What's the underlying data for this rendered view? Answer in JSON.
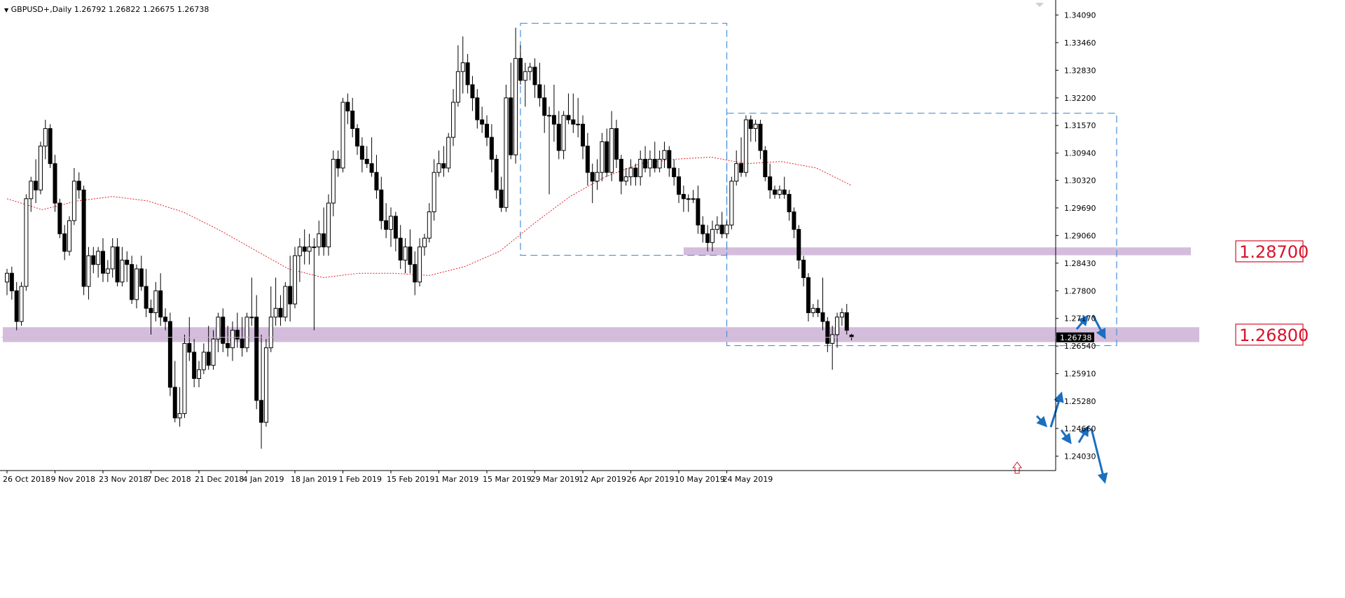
{
  "header": {
    "symbol": "GBPUSD+,Daily",
    "ohlc": "1.26792 1.26822 1.26675 1.26738"
  },
  "colors": {
    "zone": "#cdb2d6",
    "ma": "#e0202a",
    "box": "#4a90d9",
    "arrow": "#1a6fc0",
    "label_red": "#d8122a",
    "axis": "#000000"
  },
  "chart_data": {
    "type": "candlestick",
    "symbol": "GBPUSD+",
    "timeframe": "Daily",
    "ylim": [
      1.237,
      1.344
    ],
    "price_ticks": [
      "1.34090",
      "1.33460",
      "1.32830",
      "1.32200",
      "1.31570",
      "1.30940",
      "1.30320",
      "1.29690",
      "1.29060",
      "1.28430",
      "1.27800",
      "1.27170",
      "1.26540",
      "1.25910",
      "1.25280",
      "1.24660",
      "1.24030"
    ],
    "date_ticks": [
      "26 Oct 2018",
      "9 Nov 2018",
      "23 Nov 2018",
      "7 Dec 2018",
      "21 Dec 2018",
      "4 Jan 2019",
      "18 Jan 2019",
      "1 Feb 2019",
      "15 Feb 2019",
      "1 Mar 2019",
      "15 Mar 2019",
      "29 Mar 2019",
      "12 Apr 2019",
      "26 Apr 2019",
      "10 May 2019",
      "24 May 2019"
    ],
    "current_price": "1.26738",
    "levels": [
      {
        "label": "1.28700",
        "value": 1.287
      },
      {
        "label": "1.26800",
        "value": 1.268
      }
    ],
    "moving_average": [
      [
        0,
        1.299
      ],
      [
        10,
        1.2965
      ],
      [
        20,
        1.2985
      ],
      [
        30,
        1.2995
      ],
      [
        40,
        1.2985
      ],
      [
        50,
        1.296
      ],
      [
        60,
        1.292
      ],
      [
        70,
        1.2875
      ],
      [
        80,
        1.283
      ],
      [
        90,
        1.281
      ],
      [
        100,
        1.282
      ],
      [
        110,
        1.282
      ],
      [
        120,
        1.2815
      ],
      [
        130,
        1.2835
      ],
      [
        140,
        1.287
      ],
      [
        150,
        1.2935
      ],
      [
        160,
        1.2995
      ],
      [
        170,
        1.304
      ],
      [
        180,
        1.307
      ],
      [
        190,
        1.308
      ],
      [
        200,
        1.3085
      ],
      [
        210,
        1.307
      ],
      [
        220,
        1.3075
      ],
      [
        230,
        1.306
      ],
      [
        240,
        1.302
      ]
    ],
    "candles": [
      [
        1.28,
        1.283,
        1.277,
        1.282
      ],
      [
        1.282,
        1.2835,
        1.276,
        1.278
      ],
      [
        1.278,
        1.28,
        1.269,
        1.271
      ],
      [
        1.271,
        1.28,
        1.27,
        1.279
      ],
      [
        1.279,
        1.3,
        1.278,
        1.299
      ],
      [
        1.299,
        1.304,
        1.296,
        1.303
      ],
      [
        1.303,
        1.308,
        1.298,
        1.301
      ],
      [
        1.301,
        1.312,
        1.3,
        1.311
      ],
      [
        1.311,
        1.317,
        1.308,
        1.315
      ],
      [
        1.315,
        1.316,
        1.306,
        1.307
      ],
      [
        1.307,
        1.309,
        1.296,
        1.298
      ],
      [
        1.298,
        1.299,
        1.29,
        1.291
      ],
      [
        1.291,
        1.293,
        1.285,
        1.287
      ],
      [
        1.287,
        1.295,
        1.286,
        1.294
      ],
      [
        1.294,
        1.306,
        1.293,
        1.303
      ],
      [
        1.303,
        1.305,
        1.299,
        1.301
      ],
      [
        1.301,
        1.302,
        1.277,
        1.279
      ],
      [
        1.279,
        1.288,
        1.276,
        1.286
      ],
      [
        1.286,
        1.288,
        1.282,
        1.284
      ],
      [
        1.284,
        1.288,
        1.281,
        1.287
      ],
      [
        1.287,
        1.29,
        1.28,
        1.282
      ],
      [
        1.282,
        1.285,
        1.28,
        1.283
      ],
      [
        1.283,
        1.29,
        1.281,
        1.288
      ],
      [
        1.288,
        1.29,
        1.279,
        1.28
      ],
      [
        1.28,
        1.288,
        1.279,
        1.285
      ],
      [
        1.285,
        1.287,
        1.28,
        1.284
      ],
      [
        1.284,
        1.286,
        1.275,
        1.276
      ],
      [
        1.276,
        1.284,
        1.274,
        1.283
      ],
      [
        1.283,
        1.286,
        1.278,
        1.279
      ],
      [
        1.279,
        1.283,
        1.272,
        1.274
      ],
      [
        1.274,
        1.276,
        1.268,
        1.273
      ],
      [
        1.273,
        1.28,
        1.271,
        1.278
      ],
      [
        1.278,
        1.282,
        1.27,
        1.272
      ],
      [
        1.272,
        1.274,
        1.269,
        1.271
      ],
      [
        1.271,
        1.273,
        1.254,
        1.256
      ],
      [
        1.256,
        1.262,
        1.248,
        1.249
      ],
      [
        1.249,
        1.256,
        1.247,
        1.25
      ],
      [
        1.25,
        1.268,
        1.249,
        1.266
      ],
      [
        1.266,
        1.272,
        1.262,
        1.264
      ],
      [
        1.264,
        1.267,
        1.256,
        1.258
      ],
      [
        1.258,
        1.262,
        1.256,
        1.26
      ],
      [
        1.26,
        1.266,
        1.259,
        1.264
      ],
      [
        1.264,
        1.27,
        1.26,
        1.261
      ],
      [
        1.261,
        1.269,
        1.26,
        1.267
      ],
      [
        1.267,
        1.273,
        1.264,
        1.272
      ],
      [
        1.272,
        1.274,
        1.264,
        1.266
      ],
      [
        1.266,
        1.27,
        1.263,
        1.265
      ],
      [
        1.265,
        1.271,
        1.262,
        1.269
      ],
      [
        1.269,
        1.273,
        1.265,
        1.267
      ],
      [
        1.267,
        1.272,
        1.263,
        1.265
      ],
      [
        1.265,
        1.273,
        1.264,
        1.272
      ],
      [
        1.272,
        1.281,
        1.27,
        1.272
      ],
      [
        1.272,
        1.277,
        1.251,
        1.253
      ],
      [
        1.253,
        1.268,
        1.242,
        1.248
      ],
      [
        1.248,
        1.267,
        1.247,
        1.265
      ],
      [
        1.265,
        1.279,
        1.264,
        1.272
      ],
      [
        1.272,
        1.281,
        1.27,
        1.274
      ],
      [
        1.274,
        1.277,
        1.27,
        1.272
      ],
      [
        1.272,
        1.28,
        1.271,
        1.279
      ],
      [
        1.279,
        1.286,
        1.271,
        1.275
      ],
      [
        1.275,
        1.288,
        1.274,
        1.286
      ],
      [
        1.286,
        1.29,
        1.28,
        1.288
      ],
      [
        1.288,
        1.292,
        1.284,
        1.287
      ],
      [
        1.287,
        1.291,
        1.284,
        1.288
      ],
      [
        1.288,
        1.29,
        1.269,
        1.288
      ],
      [
        1.288,
        1.294,
        1.286,
        1.291
      ],
      [
        1.291,
        1.297,
        1.286,
        1.288
      ],
      [
        1.288,
        1.3,
        1.286,
        1.298
      ],
      [
        1.298,
        1.31,
        1.295,
        1.308
      ],
      [
        1.308,
        1.31,
        1.304,
        1.306
      ],
      [
        1.306,
        1.322,
        1.305,
        1.321
      ],
      [
        1.321,
        1.323,
        1.316,
        1.319
      ],
      [
        1.319,
        1.322,
        1.313,
        1.315
      ],
      [
        1.315,
        1.316,
        1.309,
        1.311
      ],
      [
        1.311,
        1.313,
        1.305,
        1.308
      ],
      [
        1.308,
        1.311,
        1.306,
        1.307
      ],
      [
        1.307,
        1.313,
        1.304,
        1.305
      ],
      [
        1.305,
        1.309,
        1.299,
        1.301
      ],
      [
        1.301,
        1.304,
        1.292,
        1.294
      ],
      [
        1.294,
        1.298,
        1.29,
        1.292
      ],
      [
        1.292,
        1.297,
        1.288,
        1.295
      ],
      [
        1.295,
        1.296,
        1.287,
        1.29
      ],
      [
        1.29,
        1.293,
        1.283,
        1.285
      ],
      [
        1.285,
        1.29,
        1.282,
        1.288
      ],
      [
        1.288,
        1.292,
        1.282,
        1.284
      ],
      [
        1.284,
        1.287,
        1.277,
        1.28
      ],
      [
        1.28,
        1.29,
        1.279,
        1.288
      ],
      [
        1.288,
        1.291,
        1.286,
        1.29
      ],
      [
        1.29,
        1.298,
        1.289,
        1.296
      ],
      [
        1.296,
        1.308,
        1.294,
        1.305
      ],
      [
        1.305,
        1.31,
        1.304,
        1.307
      ],
      [
        1.307,
        1.311,
        1.304,
        1.306
      ],
      [
        1.306,
        1.314,
        1.305,
        1.313
      ],
      [
        1.313,
        1.324,
        1.311,
        1.321
      ],
      [
        1.321,
        1.334,
        1.32,
        1.328
      ],
      [
        1.328,
        1.336,
        1.323,
        1.33
      ],
      [
        1.33,
        1.332,
        1.323,
        1.325
      ],
      [
        1.325,
        1.327,
        1.319,
        1.322
      ],
      [
        1.322,
        1.324,
        1.315,
        1.317
      ],
      [
        1.317,
        1.32,
        1.314,
        1.316
      ],
      [
        1.316,
        1.318,
        1.311,
        1.313
      ],
      [
        1.313,
        1.316,
        1.305,
        1.308
      ],
      [
        1.308,
        1.309,
        1.299,
        1.301
      ],
      [
        1.301,
        1.304,
        1.296,
        1.297
      ],
      [
        1.297,
        1.325,
        1.296,
        1.322
      ],
      [
        1.322,
        1.33,
        1.308,
        1.309
      ],
      [
        1.309,
        1.338,
        1.307,
        1.331
      ],
      [
        1.331,
        1.334,
        1.325,
        1.326
      ],
      [
        1.326,
        1.33,
        1.32,
        1.328
      ],
      [
        1.328,
        1.33,
        1.326,
        1.329
      ],
      [
        1.329,
        1.331,
        1.322,
        1.325
      ],
      [
        1.325,
        1.33,
        1.32,
        1.322
      ],
      [
        1.322,
        1.325,
        1.314,
        1.318
      ],
      [
        1.318,
        1.32,
        1.3,
        1.318
      ],
      [
        1.318,
        1.325,
        1.312,
        1.316
      ],
      [
        1.316,
        1.319,
        1.308,
        1.31
      ],
      [
        1.31,
        1.319,
        1.308,
        1.318
      ],
      [
        1.318,
        1.323,
        1.316,
        1.317
      ],
      [
        1.317,
        1.323,
        1.314,
        1.316
      ],
      [
        1.316,
        1.322,
        1.313,
        1.316
      ],
      [
        1.316,
        1.318,
        1.308,
        1.311
      ],
      [
        1.311,
        1.314,
        1.302,
        1.305
      ],
      [
        1.305,
        1.307,
        1.298,
        1.303
      ],
      [
        1.303,
        1.308,
        1.301,
        1.305
      ],
      [
        1.305,
        1.314,
        1.303,
        1.312
      ],
      [
        1.312,
        1.315,
        1.304,
        1.305
      ],
      [
        1.305,
        1.319,
        1.303,
        1.315
      ],
      [
        1.315,
        1.317,
        1.306,
        1.308
      ],
      [
        1.308,
        1.309,
        1.3,
        1.303
      ],
      [
        1.303,
        1.306,
        1.302,
        1.304
      ],
      [
        1.304,
        1.308,
        1.302,
        1.306
      ],
      [
        1.306,
        1.307,
        1.302,
        1.304
      ],
      [
        1.304,
        1.31,
        1.302,
        1.308
      ],
      [
        1.308,
        1.311,
        1.305,
        1.306
      ],
      [
        1.306,
        1.31,
        1.304,
        1.308
      ],
      [
        1.308,
        1.312,
        1.305,
        1.306
      ],
      [
        1.306,
        1.31,
        1.305,
        1.308
      ],
      [
        1.308,
        1.312,
        1.306,
        1.31
      ],
      [
        1.31,
        1.311,
        1.304,
        1.306
      ],
      [
        1.306,
        1.308,
        1.302,
        1.304
      ],
      [
        1.304,
        1.306,
        1.298,
        1.3
      ],
      [
        1.3,
        1.302,
        1.296,
        1.299
      ],
      [
        1.299,
        1.3,
        1.296,
        1.299
      ],
      [
        1.299,
        1.301,
        1.298,
        1.299
      ],
      [
        1.299,
        1.302,
        1.291,
        1.293
      ],
      [
        1.293,
        1.295,
        1.289,
        1.291
      ],
      [
        1.291,
        1.293,
        1.287,
        1.289
      ],
      [
        1.289,
        1.294,
        1.287,
        1.292
      ],
      [
        1.292,
        1.295,
        1.291,
        1.293
      ],
      [
        1.293,
        1.296,
        1.29,
        1.291
      ],
      [
        1.291,
        1.294,
        1.29,
        1.293
      ],
      [
        1.293,
        1.304,
        1.292,
        1.303
      ],
      [
        1.303,
        1.31,
        1.302,
        1.307
      ],
      [
        1.307,
        1.313,
        1.304,
        1.305
      ],
      [
        1.305,
        1.318,
        1.304,
        1.317
      ],
      [
        1.317,
        1.318,
        1.312,
        1.315
      ],
      [
        1.315,
        1.317,
        1.312,
        1.316
      ],
      [
        1.316,
        1.317,
        1.308,
        1.31
      ],
      [
        1.31,
        1.311,
        1.303,
        1.304
      ],
      [
        1.304,
        1.307,
        1.299,
        1.301
      ],
      [
        1.301,
        1.302,
        1.299,
        1.3
      ],
      [
        1.3,
        1.302,
        1.299,
        1.301
      ],
      [
        1.301,
        1.304,
        1.299,
        1.3
      ],
      [
        1.3,
        1.301,
        1.294,
        1.296
      ],
      [
        1.296,
        1.297,
        1.29,
        1.292
      ],
      [
        1.292,
        1.293,
        1.283,
        1.285
      ],
      [
        1.285,
        1.286,
        1.279,
        1.281
      ],
      [
        1.281,
        1.282,
        1.271,
        1.273
      ],
      [
        1.273,
        1.275,
        1.272,
        1.274
      ],
      [
        1.274,
        1.276,
        1.272,
        1.273
      ],
      [
        1.273,
        1.281,
        1.269,
        1.271
      ],
      [
        1.271,
        1.272,
        1.264,
        1.266
      ],
      [
        1.266,
        1.27,
        1.26,
        1.268
      ],
      [
        1.268,
        1.273,
        1.265,
        1.272
      ],
      [
        1.272,
        1.274,
        1.27,
        1.273
      ],
      [
        1.273,
        1.275,
        1.268,
        1.269
      ],
      [
        1.2679,
        1.2682,
        1.2667,
        1.2674
      ]
    ]
  }
}
